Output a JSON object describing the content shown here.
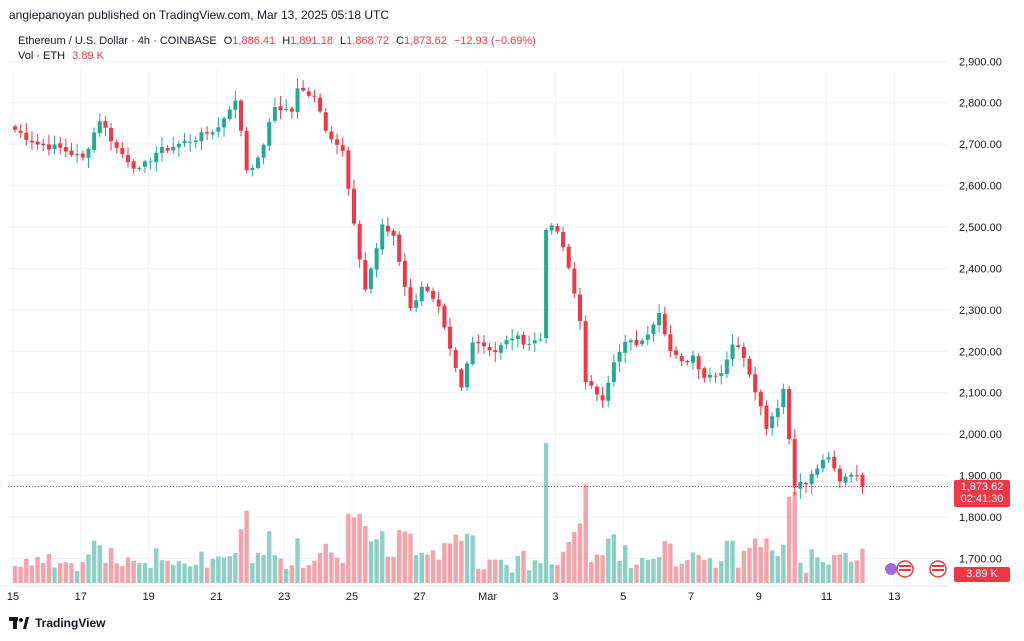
{
  "header": {
    "published": "angiepanoyan published on TradingView.com, Mar 13, 2025 05:18 UTC"
  },
  "legend": {
    "symbol": "Ethereum / U.S. Dollar · 4h · COINBASE",
    "o_key": "O",
    "o_val": "1,886.41",
    "h_key": "H",
    "h_val": "1,891.18",
    "l_key": "L",
    "l_val": "1,868.72",
    "c_key": "C",
    "c_val": "1,873.62",
    "change": "−12.93 (−0.69%)",
    "vol_label": "Vol · ETH",
    "vol_val": "3.89 K"
  },
  "price_tag": {
    "price": "1,873.62",
    "countdown": "02:41:30"
  },
  "vol_tag": "3.89 K",
  "footer": {
    "brand": "TradingView"
  },
  "colors": {
    "up": "#22AB94",
    "down": "#F23645",
    "up_vol": "#8ED0C6",
    "down_vol": "#F5A3AA"
  },
  "chart_data": {
    "type": "candlestick",
    "y_axis": {
      "ticks": [
        "2,900.00",
        "2,800.00",
        "2,700.00",
        "2,600.00",
        "2,500.00",
        "2,400.00",
        "2,300.00",
        "2,200.00",
        "2,100.00",
        "2,000.00",
        "1,900.00",
        "1,800.00",
        "1,700.00"
      ],
      "tick_values": [
        2900,
        2800,
        2700,
        2600,
        2500,
        2400,
        2300,
        2200,
        2100,
        2000,
        1900,
        1800,
        1700
      ],
      "range": [
        1650,
        2950
      ]
    },
    "x_axis": {
      "ticks": [
        "15",
        "17",
        "19",
        "21",
        "23",
        "25",
        "27",
        "Mar",
        "3",
        "5",
        "7",
        "9",
        "11",
        "13"
      ],
      "tick_bar_index": [
        0,
        12,
        24,
        36,
        48,
        60,
        72,
        84,
        96,
        108,
        120,
        132,
        144,
        156
      ]
    },
    "last_price": 1873.62,
    "close_anchors": [
      [
        0,
        2735
      ],
      [
        4,
        2700
      ],
      [
        8,
        2690
      ],
      [
        12,
        2665
      ],
      [
        15,
        2760
      ],
      [
        18,
        2690
      ],
      [
        22,
        2635
      ],
      [
        25,
        2680
      ],
      [
        29,
        2700
      ],
      [
        33,
        2720
      ],
      [
        36,
        2740
      ],
      [
        38,
        2790
      ],
      [
        39,
        2800
      ],
      [
        40,
        2735
      ],
      [
        41,
        2640
      ],
      [
        43,
        2660
      ],
      [
        46,
        2790
      ],
      [
        49,
        2780
      ],
      [
        50,
        2830
      ],
      [
        53,
        2820
      ],
      [
        55,
        2740
      ],
      [
        58,
        2680
      ],
      [
        60,
        2500
      ],
      [
        62,
        2350
      ],
      [
        65,
        2500
      ],
      [
        67,
        2480
      ],
      [
        70,
        2300
      ],
      [
        72,
        2360
      ],
      [
        75,
        2300
      ],
      [
        77,
        2200
      ],
      [
        79,
        2110
      ],
      [
        81,
        2230
      ],
      [
        85,
        2200
      ],
      [
        88,
        2235
      ],
      [
        91,
        2220
      ],
      [
        93,
        2230
      ],
      [
        94,
        2500
      ],
      [
        96,
        2490
      ],
      [
        98,
        2400
      ],
      [
        100,
        2280
      ],
      [
        101,
        2120
      ],
      [
        104,
        2090
      ],
      [
        106,
        2170
      ],
      [
        108,
        2220
      ],
      [
        111,
        2220
      ],
      [
        114,
        2300
      ],
      [
        116,
        2200
      ],
      [
        118,
        2170
      ],
      [
        120,
        2190
      ],
      [
        122,
        2140
      ],
      [
        125,
        2150
      ],
      [
        127,
        2220
      ],
      [
        129,
        2190
      ],
      [
        131,
        2110
      ],
      [
        133,
        2020
      ],
      [
        135,
        2070
      ],
      [
        136,
        2110
      ],
      [
        137,
        1990
      ],
      [
        138,
        1880
      ],
      [
        140,
        1880
      ],
      [
        142,
        1920
      ],
      [
        144,
        1940
      ],
      [
        146,
        1890
      ],
      [
        148,
        1910
      ],
      [
        150,
        1875
      ]
    ],
    "volume_scale_max": "3.89 K"
  }
}
